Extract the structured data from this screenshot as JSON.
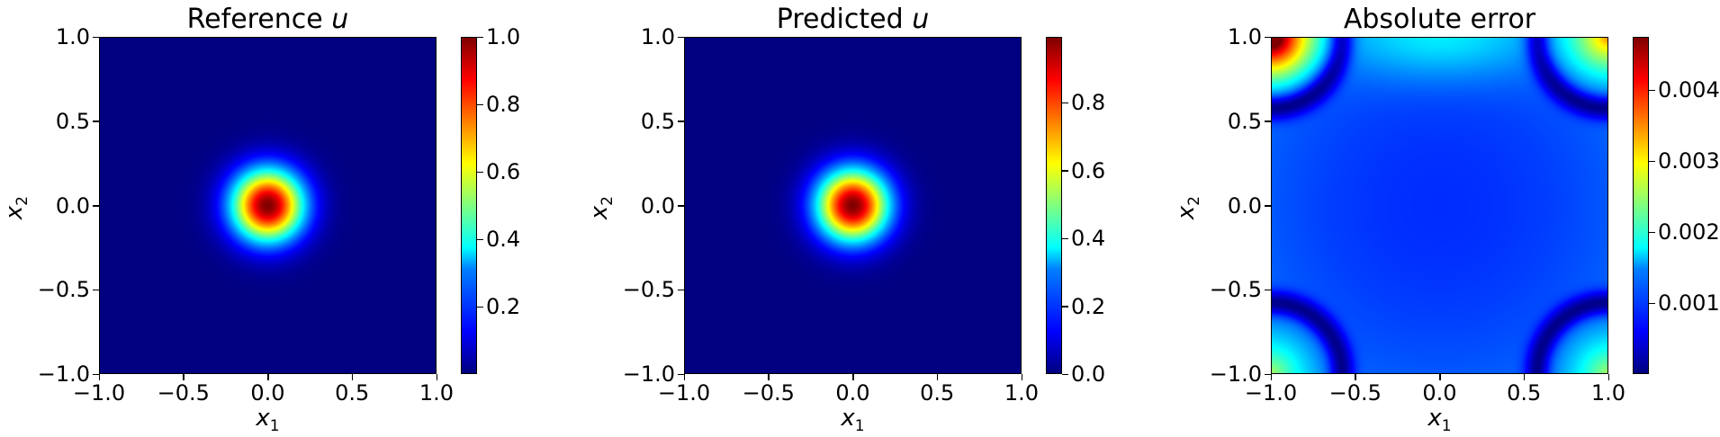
{
  "chart_data": [
    {
      "type": "heatmap",
      "title": "Reference u",
      "title_main": "Reference",
      "title_var": "u",
      "xlabel": "x1",
      "ylabel": "x2",
      "xlim": [
        -1.0,
        1.0
      ],
      "ylim": [
        -1.0,
        1.0
      ],
      "xticks": [
        "−1.0",
        "−0.5",
        "0.0",
        "0.5",
        "1.0"
      ],
      "yticks": [
        "−1.0",
        "−0.5",
        "0.0",
        "0.5",
        "1.0"
      ],
      "colormap": "jet",
      "field": "gaussian centered at (0,0), peak 1.0",
      "colorbar": {
        "min": 0.0,
        "max": 1.0,
        "ticks": [
          "0.2",
          "0.4",
          "0.6",
          "0.8",
          "1.0"
        ],
        "tick_values": [
          0.2,
          0.4,
          0.6,
          0.8,
          1.0
        ]
      }
    },
    {
      "type": "heatmap",
      "title": "Predicted u",
      "title_main": "Predicted",
      "title_var": "u",
      "xlabel": "x1",
      "ylabel": "x2",
      "xlim": [
        -1.0,
        1.0
      ],
      "ylim": [
        -1.0,
        1.0
      ],
      "xticks": [
        "−1.0",
        "−0.5",
        "0.0",
        "0.5",
        "1.0"
      ],
      "yticks": [
        "−1.0",
        "−0.5",
        "0.0",
        "0.5",
        "1.0"
      ],
      "colormap": "jet",
      "field": "gaussian centered at (0,0), peak ~0.99",
      "colorbar": {
        "min": 0.0,
        "max": 0.995,
        "ticks": [
          "0.0",
          "0.2",
          "0.4",
          "0.6",
          "0.8"
        ],
        "tick_values": [
          0.0,
          0.2,
          0.4,
          0.6,
          0.8
        ]
      }
    },
    {
      "type": "heatmap",
      "title": "Absolute error",
      "title_main": "Absolute error",
      "title_var": "",
      "xlabel": "x1",
      "ylabel": "x2",
      "xlim": [
        -1.0,
        1.0
      ],
      "ylim": [
        -1.0,
        1.0
      ],
      "xticks": [
        "−1.0",
        "−0.5",
        "0.0",
        "0.5",
        "1.0"
      ],
      "yticks": [
        "−1.0",
        "−0.5",
        "0.0",
        "0.5",
        "1.0"
      ],
      "colormap": "jet",
      "field": "error highest at corners (max at top-left), low arcs near corners",
      "colorbar": {
        "min": 0.0,
        "max": 0.00475,
        "ticks": [
          "0.001",
          "0.002",
          "0.003",
          "0.004"
        ],
        "tick_values": [
          0.001,
          0.002,
          0.003,
          0.004
        ]
      }
    }
  ]
}
